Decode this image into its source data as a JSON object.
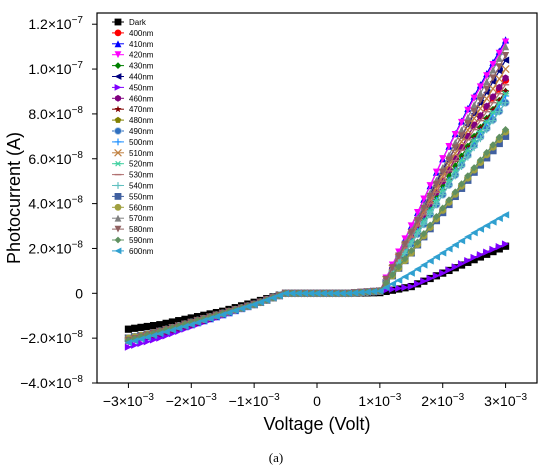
{
  "chart_data": {
    "type": "line",
    "xlabel": "Voltage (Volt)",
    "ylabel": "Photocurrent (A)",
    "caption": "(a)",
    "xlim": [
      -0.0035,
      0.0035
    ],
    "ylim": [
      -4e-08,
      1.25e-07
    ],
    "x_ticks": [
      -0.003,
      -0.002,
      -0.001,
      0,
      0.001,
      0.002,
      0.003
    ],
    "x_tick_labels": [
      {
        "base": "−3×10",
        "exp": "−3"
      },
      {
        "base": "−2×10",
        "exp": "−3"
      },
      {
        "base": "−1×10",
        "exp": "−3"
      },
      {
        "base": "0",
        "exp": ""
      },
      {
        "base": "1×10",
        "exp": "−3"
      },
      {
        "base": "2×10",
        "exp": "−3"
      },
      {
        "base": "3×10",
        "exp": "−3"
      }
    ],
    "y_ticks": [
      -4e-08,
      -2e-08,
      0,
      2e-08,
      4e-08,
      6e-08,
      8e-08,
      1e-07,
      1.2e-07
    ],
    "y_tick_labels": [
      {
        "base": "−4.0×10",
        "exp": "−8"
      },
      {
        "base": "−2.0×10",
        "exp": "−8"
      },
      {
        "base": "0",
        "exp": ""
      },
      {
        "base": "2.0×10",
        "exp": "−8"
      },
      {
        "base": "4.0×10",
        "exp": "−8"
      },
      {
        "base": "6.0×10",
        "exp": "−8"
      },
      {
        "base": "8.0×10",
        "exp": "−8"
      },
      {
        "base": "1.0×10",
        "exp": "−7"
      },
      {
        "base": "1.2×10",
        "exp": "−7"
      }
    ],
    "legend_position": "top-left",
    "x": [
      -0.003,
      -0.0025,
      -0.002,
      -0.0015,
      -0.001,
      -0.0005,
      0,
      0.0005,
      0.001,
      0.0015,
      0.002,
      0.0025,
      0.003
    ],
    "series": [
      {
        "name": "Dark",
        "color": "#000000",
        "marker": "square",
        "values": [
          -1.6e-08,
          -1.4e-08,
          -1.1e-08,
          -8e-09,
          -4e-09,
          0,
          0,
          0,
          3e-10,
          3e-09,
          9e-09,
          1.5e-08,
          2.1e-08
        ]
      },
      {
        "name": "400nm",
        "color": "#ff0000",
        "marker": "circle",
        "values": [
          -2e-08,
          -1.7e-08,
          -1.3e-08,
          -9e-09,
          -5e-09,
          0,
          0,
          0,
          1e-09,
          2.5e-08,
          5e-08,
          7.5e-08,
          9.5e-08
        ]
      },
      {
        "name": "410nm",
        "color": "#0000ff",
        "marker": "triangle-up",
        "values": [
          -2.1e-08,
          -1.8e-08,
          -1.4e-08,
          -9.5e-09,
          -5e-09,
          0,
          0,
          0,
          1e-09,
          3e-08,
          6e-08,
          8.8e-08,
          1.13e-07
        ]
      },
      {
        "name": "420nm",
        "color": "#ff00ff",
        "marker": "triangle-down",
        "values": [
          -2.2e-08,
          -1.8e-08,
          -1.4e-08,
          -9.5e-09,
          -5e-09,
          0,
          0,
          0,
          1e-09,
          3e-08,
          6e-08,
          8.7e-08,
          1.12e-07
        ]
      },
      {
        "name": "430nm",
        "color": "#008000",
        "marker": "diamond",
        "values": [
          -2e-08,
          -1.7e-08,
          -1.3e-08,
          -9e-09,
          -5e-09,
          0,
          0,
          0,
          1e-09,
          2.4e-08,
          4.8e-08,
          7e-08,
          9e-08
        ]
      },
      {
        "name": "440nm",
        "color": "#000080",
        "marker": "triangle-left",
        "values": [
          -2e-08,
          -1.7e-08,
          -1.3e-08,
          -9e-09,
          -5e-09,
          0,
          0,
          0,
          1e-09,
          2.7e-08,
          5.5e-08,
          8e-08,
          1.04e-07
        ]
      },
      {
        "name": "450nm",
        "color": "#8000ff",
        "marker": "triangle-right",
        "values": [
          -2.4e-08,
          -2e-08,
          -1.5e-08,
          -1e-08,
          -5e-09,
          0,
          0,
          0,
          1e-09,
          3e-09,
          9e-09,
          1.6e-08,
          2.2e-08
        ]
      },
      {
        "name": "460nm",
        "color": "#800080",
        "marker": "hexagon",
        "values": [
          -2.1e-08,
          -1.8e-08,
          -1.4e-08,
          -9.5e-09,
          -5e-09,
          0,
          0,
          0,
          1e-09,
          2.5e-08,
          5e-08,
          7.5e-08,
          9.6e-08
        ]
      },
      {
        "name": "470nm",
        "color": "#800000",
        "marker": "star",
        "values": [
          -2e-08,
          -1.7e-08,
          -1.3e-08,
          -9e-09,
          -5e-09,
          0,
          0,
          0,
          1e-09,
          2.3e-08,
          4.6e-08,
          6.9e-08,
          9e-08
        ]
      },
      {
        "name": "480nm",
        "color": "#808000",
        "marker": "pentagon",
        "values": [
          -2e-08,
          -1.7e-08,
          -1.3e-08,
          -9e-09,
          -5e-09,
          0,
          0,
          0,
          1e-09,
          1.8e-08,
          3.7e-08,
          5.5e-08,
          7.1e-08
        ]
      },
      {
        "name": "490nm",
        "color": "#2f6fbf",
        "marker": "sphere",
        "values": [
          -2.1e-08,
          -1.7e-08,
          -1.3e-08,
          -9e-09,
          -5e-09,
          0,
          0,
          0,
          1e-09,
          2.2e-08,
          4.4e-08,
          6.6e-08,
          8.5e-08
        ]
      },
      {
        "name": "500nm",
        "color": "#1e90ff",
        "marker": "plus",
        "values": [
          -2.1e-08,
          -1.7e-08,
          -1.3e-08,
          -9e-09,
          -5e-09,
          0,
          0,
          0,
          1e-09,
          2.3e-08,
          4.6e-08,
          6.8e-08,
          8.8e-08
        ]
      },
      {
        "name": "510nm",
        "color": "#c08040",
        "marker": "x",
        "values": [
          -2e-08,
          -1.7e-08,
          -1.3e-08,
          -9e-09,
          -5e-09,
          0,
          0,
          0,
          1e-09,
          2.6e-08,
          5.2e-08,
          7.8e-08,
          1e-07
        ]
      },
      {
        "name": "520nm",
        "color": "#40d0a0",
        "marker": "asterisk",
        "values": [
          -2e-08,
          -1.7e-08,
          -1.3e-08,
          -9e-09,
          -5e-09,
          0,
          0,
          0,
          1e-09,
          2.3e-08,
          4.6e-08,
          6.8e-08,
          8.9e-08
        ]
      },
      {
        "name": "530nm",
        "color": "#b07070",
        "marker": "dash",
        "values": [
          -2e-08,
          -1.7e-08,
          -1.3e-08,
          -9e-09,
          -5e-09,
          0,
          0,
          0,
          1e-09,
          2.5e-08,
          5e-08,
          7.3e-08,
          9.3e-08
        ]
      },
      {
        "name": "540nm",
        "color": "#60c0c0",
        "marker": "plus",
        "values": [
          -2e-08,
          -1.7e-08,
          -1.3e-08,
          -9e-09,
          -5e-09,
          0,
          0,
          0,
          1e-09,
          2.2e-08,
          4.4e-08,
          6.5e-08,
          8.5e-08
        ]
      },
      {
        "name": "550nm",
        "color": "#4060a0",
        "marker": "square",
        "values": [
          -2e-08,
          -1.7e-08,
          -1.3e-08,
          -9e-09,
          -5e-09,
          0,
          0,
          0,
          1e-09,
          1.8e-08,
          3.6e-08,
          5.4e-08,
          7e-08
        ]
      },
      {
        "name": "560nm",
        "color": "#a0a040",
        "marker": "circle",
        "values": [
          -2e-08,
          -1.7e-08,
          -1.3e-08,
          -9e-09,
          -5e-09,
          0,
          0,
          0,
          1e-09,
          1.8e-08,
          3.7e-08,
          5.5e-08,
          7.2e-08
        ]
      },
      {
        "name": "570nm",
        "color": "#808080",
        "marker": "triangle-up",
        "values": [
          -2.1e-08,
          -1.7e-08,
          -1.3e-08,
          -9e-09,
          -5e-09,
          0,
          0,
          0,
          1e-09,
          2.8e-08,
          5.6e-08,
          8.4e-08,
          1.1e-07
        ]
      },
      {
        "name": "580nm",
        "color": "#906060",
        "marker": "triangle-down",
        "values": [
          -2.1e-08,
          -1.7e-08,
          -1.3e-08,
          -9e-09,
          -5e-09,
          0,
          0,
          0,
          1e-09,
          2.7e-08,
          5.4e-08,
          8.1e-08,
          1.06e-07
        ]
      },
      {
        "name": "590nm",
        "color": "#609060",
        "marker": "diamond",
        "values": [
          -2.1e-08,
          -1.7e-08,
          -1.3e-08,
          -9e-09,
          -5e-09,
          0,
          0,
          0,
          1e-09,
          1.9e-08,
          3.8e-08,
          5.6e-08,
          7.3e-08
        ]
      },
      {
        "name": "600nm",
        "color": "#30a0d0",
        "marker": "triangle-left",
        "values": [
          -2.2e-08,
          -1.8e-08,
          -1.4e-08,
          -9.5e-09,
          -5e-09,
          0,
          0,
          0,
          1e-09,
          9e-09,
          1.8e-08,
          2.7e-08,
          3.5e-08
        ]
      }
    ]
  }
}
